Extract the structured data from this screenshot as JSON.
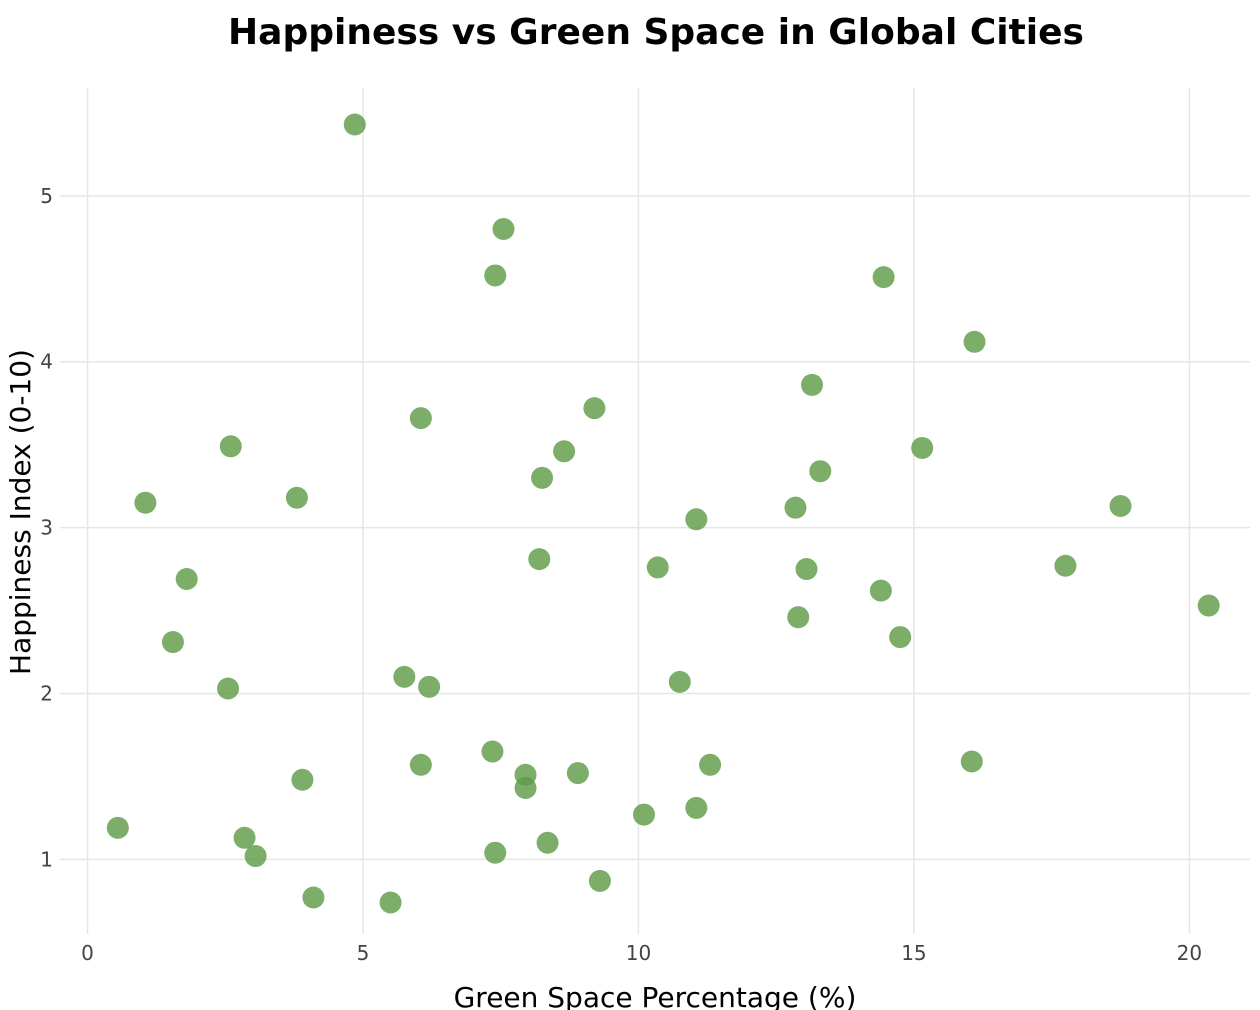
{
  "chart_data": {
    "type": "scatter",
    "title": "Happiness vs Green Space in Global Cities",
    "xlabel": "Green Space Percentage (%)",
    "ylabel": "Happiness Index (0-10)",
    "xlim": [
      -0.5,
      21.1
    ],
    "ylim": [
      0.55,
      5.65
    ],
    "x_ticks": [
      0,
      5,
      10,
      15,
      20
    ],
    "y_ticks": [
      1,
      2,
      3,
      4,
      5
    ],
    "grid": true,
    "marker_color": "#5b9a45",
    "marker_opacity": 0.8,
    "points": [
      {
        "x": 4.85,
        "y": 5.43
      },
      {
        "x": 7.55,
        "y": 4.8
      },
      {
        "x": 7.4,
        "y": 4.52
      },
      {
        "x": 14.45,
        "y": 4.51
      },
      {
        "x": 16.1,
        "y": 4.12
      },
      {
        "x": 13.15,
        "y": 3.86
      },
      {
        "x": 9.2,
        "y": 3.72
      },
      {
        "x": 6.05,
        "y": 3.66
      },
      {
        "x": 2.6,
        "y": 3.49
      },
      {
        "x": 15.15,
        "y": 3.48
      },
      {
        "x": 8.65,
        "y": 3.46
      },
      {
        "x": 13.3,
        "y": 3.34
      },
      {
        "x": 8.25,
        "y": 3.3
      },
      {
        "x": 3.8,
        "y": 3.18
      },
      {
        "x": 1.05,
        "y": 3.15
      },
      {
        "x": 18.75,
        "y": 3.13
      },
      {
        "x": 12.85,
        "y": 3.12
      },
      {
        "x": 11.05,
        "y": 3.05
      },
      {
        "x": 8.2,
        "y": 2.81
      },
      {
        "x": 17.75,
        "y": 2.77
      },
      {
        "x": 10.35,
        "y": 2.76
      },
      {
        "x": 13.05,
        "y": 2.75
      },
      {
        "x": 1.8,
        "y": 2.69
      },
      {
        "x": 14.4,
        "y": 2.62
      },
      {
        "x": 20.35,
        "y": 2.53
      },
      {
        "x": 12.9,
        "y": 2.46
      },
      {
        "x": 14.75,
        "y": 2.34
      },
      {
        "x": 1.55,
        "y": 2.31
      },
      {
        "x": 5.75,
        "y": 2.1
      },
      {
        "x": 10.75,
        "y": 2.07
      },
      {
        "x": 6.2,
        "y": 2.04
      },
      {
        "x": 2.55,
        "y": 2.03
      },
      {
        "x": 7.35,
        "y": 1.65
      },
      {
        "x": 16.05,
        "y": 1.59
      },
      {
        "x": 6.05,
        "y": 1.57
      },
      {
        "x": 11.3,
        "y": 1.57
      },
      {
        "x": 8.9,
        "y": 1.52
      },
      {
        "x": 7.95,
        "y": 1.51
      },
      {
        "x": 3.9,
        "y": 1.48
      },
      {
        "x": 7.95,
        "y": 1.43
      },
      {
        "x": 11.05,
        "y": 1.31
      },
      {
        "x": 10.1,
        "y": 1.27
      },
      {
        "x": 0.55,
        "y": 1.19
      },
      {
        "x": 2.85,
        "y": 1.13
      },
      {
        "x": 8.35,
        "y": 1.1
      },
      {
        "x": 7.4,
        "y": 1.04
      },
      {
        "x": 3.05,
        "y": 1.02
      },
      {
        "x": 9.3,
        "y": 0.87
      },
      {
        "x": 4.1,
        "y": 0.77
      },
      {
        "x": 5.5,
        "y": 0.74
      }
    ]
  }
}
